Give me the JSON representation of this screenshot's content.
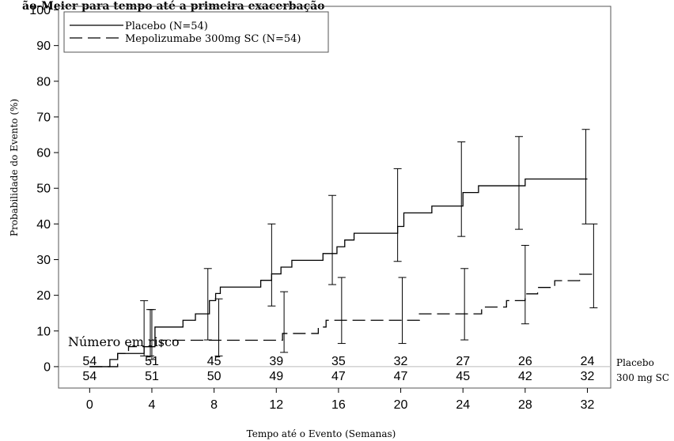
{
  "header_fragment": "ão-Meier para tempo até a primeira exacerbação",
  "chart_data": {
    "type": "line",
    "step": true,
    "xlabel": "Tempo até o Evento (Semanas)",
    "ylabel": "Probabilidade do Evento (%)",
    "xlim": [
      -2,
      33.5
    ],
    "ylim": [
      -6,
      101
    ],
    "xticks": [
      0,
      4,
      8,
      12,
      16,
      20,
      24,
      28,
      32
    ],
    "yticks": [
      0,
      10,
      20,
      30,
      40,
      50,
      60,
      70,
      80,
      90,
      100
    ],
    "grid": false,
    "legend_position": "top-left",
    "series": [
      {
        "name": "Placebo (N=54)",
        "style": "solid",
        "x": [
          0,
          1.3,
          1.8,
          3.5,
          4.2,
          6.0,
          6.8,
          7.7,
          8.1,
          8.4,
          11.0,
          11.7,
          12.3,
          13.0,
          15.0,
          15.9,
          16.4,
          17.0,
          18.5,
          19.8,
          20.2,
          22.0,
          24.0,
          25.0,
          27.5,
          28.0,
          32.0
        ],
        "y": [
          0,
          2.0,
          3.7,
          5.6,
          11.1,
          13.0,
          14.8,
          18.5,
          20.5,
          22.3,
          24.2,
          26.0,
          27.9,
          29.8,
          31.7,
          33.6,
          35.5,
          37.4,
          37.4,
          39.3,
          43.1,
          45.0,
          48.8,
          50.7,
          50.7,
          52.6,
          52.6
        ],
        "ci": [
          {
            "x": 3.5,
            "low": 3.0,
            "high": 18.5
          },
          {
            "x": 4.0,
            "low": 2.0,
            "high": 16.0
          },
          {
            "x": 7.6,
            "low": 7.5,
            "high": 27.5
          },
          {
            "x": 8.3,
            "low": 3.0,
            "high": 19.0
          },
          {
            "x": 11.7,
            "low": 17.0,
            "high": 40.0
          },
          {
            "x": 15.6,
            "low": 23.0,
            "high": 48.0
          },
          {
            "x": 19.8,
            "low": 29.5,
            "high": 55.5
          },
          {
            "x": 23.9,
            "low": 36.5,
            "high": 63.0
          },
          {
            "x": 27.6,
            "low": 38.5,
            "high": 64.5
          },
          {
            "x": 31.9,
            "low": 40.0,
            "high": 66.5
          }
        ]
      },
      {
        "name": "Mepolizumabe 300mg SC (N=54)",
        "style": "dashed",
        "x": [
          0,
          1.8,
          2.5,
          4.6,
          12.0,
          12.4,
          14.7,
          15.2,
          20.6,
          21.2,
          25.2,
          26.8,
          28.0,
          28.8,
          29.9,
          31.5,
          32.3
        ],
        "y": [
          0,
          3.7,
          5.6,
          7.4,
          7.4,
          9.3,
          11.1,
          13.0,
          13.0,
          14.8,
          16.7,
          18.5,
          20.4,
          22.2,
          24.1,
          25.9,
          25.9
        ],
        "ci": [
          {
            "x": 3.9,
            "low": 3.0,
            "high": 16.0
          },
          {
            "x": 12.5,
            "low": 4.0,
            "high": 21.0
          },
          {
            "x": 16.2,
            "low": 6.5,
            "high": 25.0
          },
          {
            "x": 20.1,
            "low": 6.5,
            "high": 25.0
          },
          {
            "x": 24.1,
            "low": 7.5,
            "high": 27.5
          },
          {
            "x": 28.0,
            "low": 12.0,
            "high": 34.0
          },
          {
            "x": 32.4,
            "low": 16.5,
            "high": 40.0
          }
        ]
      }
    ],
    "at_risk": {
      "title": "Número em risco",
      "times": [
        0,
        4,
        8,
        12,
        16,
        20,
        24,
        28,
        32
      ],
      "rows": [
        {
          "label": "Placebo",
          "values": [
            "54",
            "51",
            "45",
            "39",
            "35",
            "32",
            "27",
            "26",
            "24"
          ]
        },
        {
          "label": "300 mg SC",
          "values": [
            "54",
            "51",
            "50",
            "49",
            "47",
            "47",
            "45",
            "42",
            "32"
          ]
        }
      ]
    }
  }
}
